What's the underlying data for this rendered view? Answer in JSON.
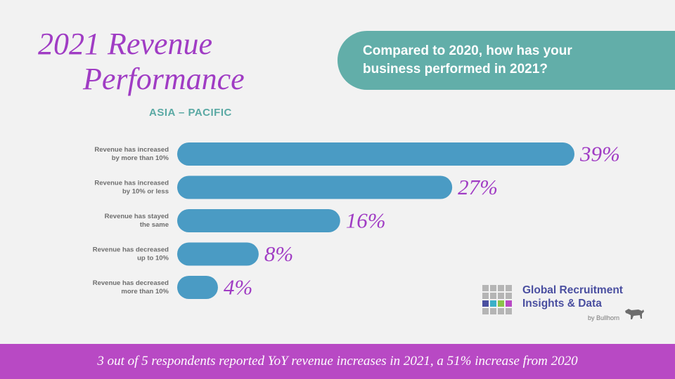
{
  "title": {
    "line1": "2021 Revenue",
    "line2": "Performance"
  },
  "region": "ASIA – PACIFIC",
  "question": {
    "line1": "Compared to 2020, how has your",
    "line2": "business performed in 2021?"
  },
  "chart_data": {
    "type": "bar",
    "orientation": "horizontal",
    "categories": [
      [
        "Revenue has increased",
        "by more than 10%"
      ],
      [
        "Revenue has increased",
        "by 10% or less"
      ],
      [
        "Revenue has stayed",
        "the same"
      ],
      [
        "Revenue has decreased",
        "up to 10%"
      ],
      [
        "Revenue has decreased",
        "more than 10%"
      ]
    ],
    "values": [
      39,
      27,
      16,
      8,
      4
    ],
    "value_labels": [
      "39%",
      "27%",
      "16%",
      "8%",
      "4%"
    ],
    "unit": "%",
    "xlim": [
      0,
      39
    ],
    "grid": false,
    "legend": "none",
    "bar_color": "#4a9bc4",
    "label_color": "#a03cc4"
  },
  "brand": {
    "line1": "Global Recruitment",
    "line2": "Insights & Data",
    "by": "by Bullhorn"
  },
  "footer": "3 out of 5 respondents reported YoY revenue increases in 2021, a 51% increase from 2020",
  "colors": {
    "title": "#a03cc4",
    "teal": "#62aea9",
    "bar": "#4a9bc4",
    "footer_bg": "#b849c4",
    "brand": "#4a4fa0",
    "background": "#f2f2f2"
  }
}
